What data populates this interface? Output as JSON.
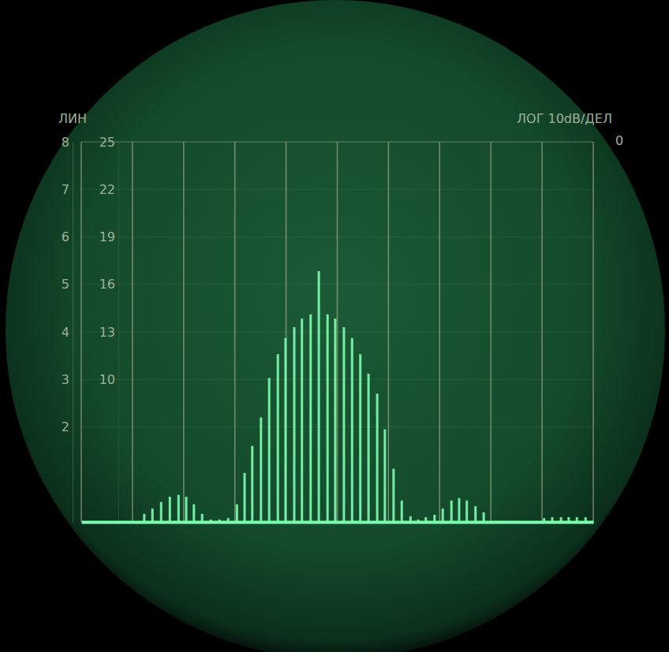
{
  "chart_data": {
    "type": "bar",
    "ylabel": "ЛИН",
    "annotations": [
      "ЛОГ 10dB/ДЕЛ",
      "0"
    ],
    "x": [
      1.23,
      1.39,
      1.56,
      1.73,
      1.9,
      2.05,
      2.2,
      2.36,
      2.53,
      2.7,
      2.87,
      3.04,
      3.19,
      3.34,
      3.51,
      3.67,
      3.84,
      3.99,
      4.16,
      4.31,
      4.48,
      4.64,
      4.81,
      4.96,
      5.13,
      5.29,
      5.45,
      5.61,
      5.78,
      5.93,
      6.1,
      6.26,
      6.43,
      6.58,
      6.73,
      6.9,
      7.06,
      7.23,
      7.38,
      7.53,
      7.7,
      7.86,
      9.04,
      9.2,
      9.37,
      9.52,
      9.68,
      9.85
    ],
    "values": [
      0.17,
      0.28,
      0.42,
      0.53,
      0.57,
      0.53,
      0.37,
      0.17,
      0.05,
      0.05,
      0.08,
      0.37,
      1.03,
      1.6,
      2.2,
      3.03,
      3.53,
      3.87,
      4.1,
      4.28,
      4.37,
      5.28,
      4.37,
      4.28,
      4.1,
      3.87,
      3.53,
      3.12,
      2.7,
      1.95,
      1.12,
      0.45,
      0.12,
      0.05,
      0.1,
      0.15,
      0.28,
      0.45,
      0.5,
      0.45,
      0.33,
      0.2,
      0.08,
      0.1,
      0.1,
      0.1,
      0.1,
      0.1
    ],
    "color": "#7dffb0",
    "xlim": [
      0,
      10
    ],
    "xticks": [
      0,
      1,
      2,
      3,
      4,
      5,
      6,
      7,
      8,
      9,
      10
    ],
    "ylim": [
      0,
      8
    ],
    "yticks": [
      2,
      3,
      4,
      5,
      6,
      7,
      8
    ],
    "y2lim": [
      1,
      25
    ],
    "y2ticks": [
      10,
      13,
      16,
      19,
      22,
      25
    ],
    "grid": true,
    "tick_labels": "y"
  }
}
